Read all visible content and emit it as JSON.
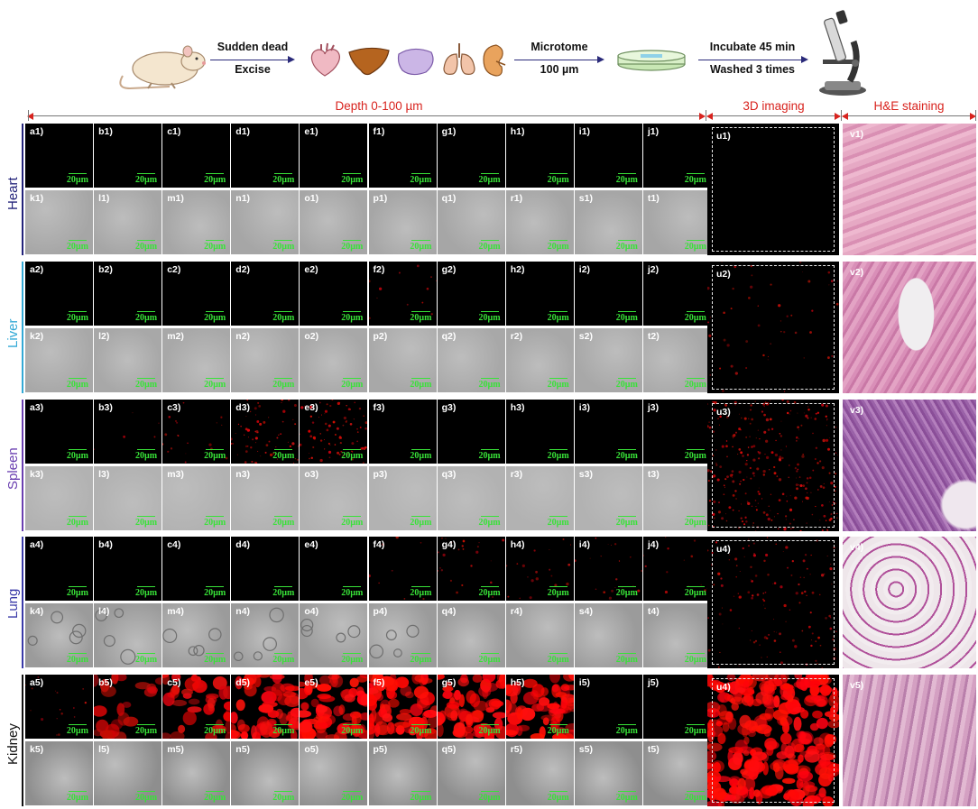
{
  "workflow": {
    "step1_top": "Sudden dead",
    "step1_bottom": "Excise",
    "step2_top": "Microtome",
    "step2_bottom": "100 µm",
    "step3_top": "Incubate 45 min",
    "step3_bottom": "Washed 3 times",
    "icons": [
      "mouse-icon",
      "heart-icon",
      "liver-icon",
      "spleen-icon",
      "lung-icon",
      "kidney-icon",
      "petri-dish-icon",
      "microscope-icon"
    ]
  },
  "sections": {
    "depth": "Depth 0-100 µm",
    "imaging3d": "3D imaging",
    "he": "H&E staining"
  },
  "scale_bar": "20µm",
  "colors": {
    "title_red": "#d8231e",
    "heart": "#23237a",
    "liver": "#33a9d6",
    "spleen": "#6a3fb0",
    "lung": "#3a3aa8",
    "kidney": "#111111",
    "scale_green": "#38e238"
  },
  "organs": [
    {
      "name": "Heart",
      "color": "#23237a",
      "fluor_intensity": [
        0,
        0,
        0,
        0,
        0,
        0,
        0,
        0,
        0,
        0
      ],
      "u": 0,
      "he": "heart"
    },
    {
      "name": "Liver",
      "color": "#33a9d6",
      "fluor_intensity": [
        0,
        0,
        0,
        0,
        0,
        0.08,
        0,
        0,
        0,
        0
      ],
      "u": 0.08,
      "he": "liver"
    },
    {
      "name": "Spleen",
      "color": "#6a3fb0",
      "fluor_intensity": [
        0,
        0.03,
        0.12,
        0.4,
        0.5,
        0,
        0,
        0,
        0,
        0
      ],
      "u": 0.45,
      "he": "spleen"
    },
    {
      "name": "Lung",
      "color": "#3a3aa8",
      "fluor_intensity": [
        0,
        0,
        0,
        0,
        0,
        0.05,
        0.15,
        0.12,
        0.12,
        0.08
      ],
      "u": 0.2,
      "he": "lung"
    },
    {
      "name": "Kidney",
      "color": "#111111",
      "fluor_intensity": [
        0.1,
        0.35,
        0.55,
        0.8,
        0.9,
        1,
        0.85,
        0.85,
        0,
        0
      ],
      "u": 1,
      "he": "kidney"
    }
  ],
  "panel_letters_fluor": [
    "a",
    "b",
    "c",
    "d",
    "e",
    "f",
    "g",
    "h",
    "i",
    "j"
  ],
  "panel_letters_bright": [
    "k",
    "l",
    "m",
    "n",
    "o",
    "p",
    "q",
    "r",
    "s",
    "t"
  ],
  "panel_3d": "u",
  "panel_he": "v",
  "u_indices": [
    "1",
    "2",
    "3",
    "4",
    "4"
  ]
}
